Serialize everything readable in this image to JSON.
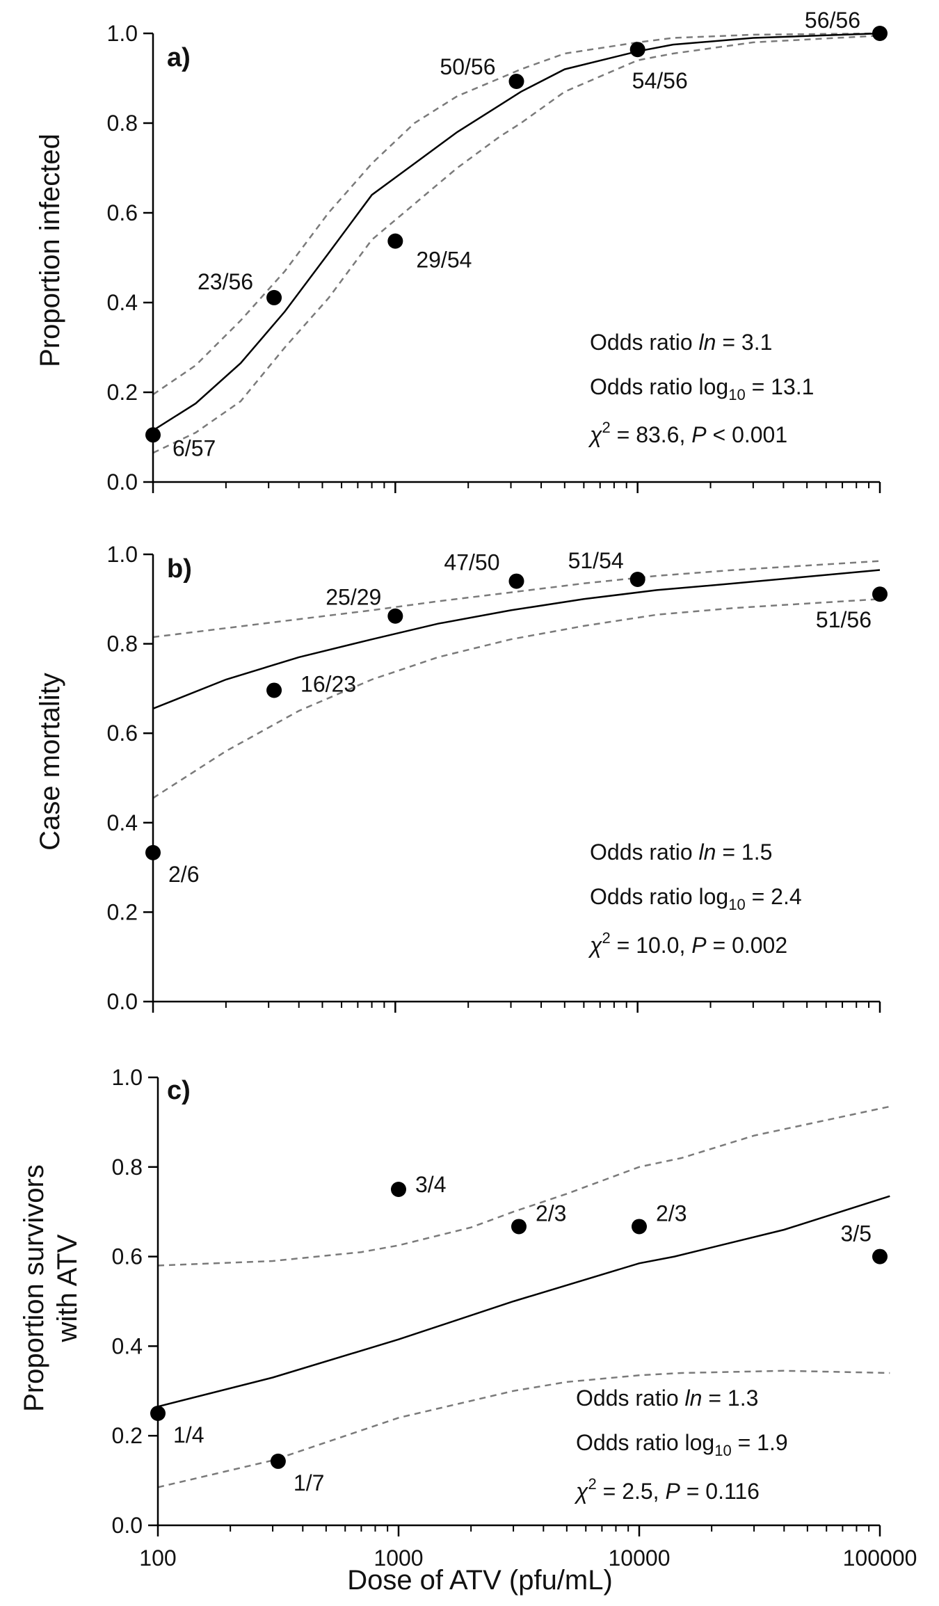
{
  "chart_data": [
    {
      "type": "scatter",
      "panel_label": "a)",
      "ylabel": "Proportion infected",
      "xlabel": "",
      "x_scale": "log",
      "xlim": [
        100,
        100000
      ],
      "ylim": [
        0,
        1
      ],
      "yticks": [
        "0.0",
        "0.2",
        "0.4",
        "0.6",
        "0.8",
        "1.0"
      ],
      "points": [
        {
          "x": 100,
          "y": 0.105,
          "label": "6/57"
        },
        {
          "x": 316,
          "y": 0.411,
          "label": "23/56"
        },
        {
          "x": 1000,
          "y": 0.537,
          "label": "29/54"
        },
        {
          "x": 3162,
          "y": 0.893,
          "label": "50/56"
        },
        {
          "x": 10000,
          "y": 0.964,
          "label": "54/56"
        },
        {
          "x": 100000,
          "y": 1.0,
          "label": "56/56"
        }
      ],
      "fit": {
        "x": [
          100,
          150,
          230,
          350,
          530,
          800,
          1200,
          1800,
          2700,
          3300,
          5000,
          10000,
          14000,
          30000,
          100000
        ],
        "y": [
          0.115,
          0.175,
          0.265,
          0.38,
          0.51,
          0.64,
          0.71,
          0.78,
          0.84,
          0.87,
          0.92,
          0.96,
          0.975,
          0.99,
          1.0
        ]
      },
      "ci_upper": {
        "x": [
          100,
          150,
          230,
          350,
          530,
          800,
          1200,
          1800,
          2700,
          3300,
          5000,
          10000,
          14000,
          30000,
          100000
        ],
        "y": [
          0.195,
          0.26,
          0.36,
          0.47,
          0.6,
          0.71,
          0.8,
          0.86,
          0.9,
          0.92,
          0.955,
          0.98,
          0.99,
          0.997,
          1.0
        ]
      },
      "ci_lower": {
        "x": [
          100,
          150,
          230,
          350,
          530,
          800,
          1200,
          1800,
          2700,
          3300,
          5000,
          10000,
          14000,
          30000,
          100000
        ],
        "y": [
          0.065,
          0.11,
          0.18,
          0.3,
          0.41,
          0.54,
          0.62,
          0.7,
          0.77,
          0.8,
          0.87,
          0.94,
          0.955,
          0.98,
          0.995
        ]
      },
      "stats": {
        "or_ln_prefix": "Odds ratio ",
        "or_ln_symbol": "ln",
        "or_ln_value": " = 3.1",
        "or_log_prefix": "Odds ratio log",
        "or_log_sub": "10",
        "or_log_value": " = 13.1",
        "chi_symbol": "χ",
        "chi_sup": "2",
        "chi_value": " = 83.6, ",
        "p_symbol": "P",
        "p_value": " < 0.001"
      }
    },
    {
      "type": "scatter",
      "panel_label": "b)",
      "ylabel": "Case mortality",
      "xlabel": "",
      "x_scale": "log",
      "xlim": [
        100,
        100000
      ],
      "ylim": [
        0,
        1
      ],
      "yticks": [
        "0.0",
        "0.2",
        "0.4",
        "0.6",
        "0.8",
        "1.0"
      ],
      "points": [
        {
          "x": 100,
          "y": 0.333,
          "label": "2/6"
        },
        {
          "x": 316,
          "y": 0.696,
          "label": "16/23"
        },
        {
          "x": 1000,
          "y": 0.862,
          "label": "25/29"
        },
        {
          "x": 3162,
          "y": 0.94,
          "label": "47/50"
        },
        {
          "x": 10000,
          "y": 0.944,
          "label": "51/54"
        },
        {
          "x": 100000,
          "y": 0.911,
          "label": "51/56"
        }
      ],
      "fit": {
        "x": [
          100,
          200,
          400,
          800,
          1500,
          3000,
          6000,
          12000,
          25000,
          50000,
          100000
        ],
        "y": [
          0.655,
          0.72,
          0.77,
          0.81,
          0.845,
          0.875,
          0.9,
          0.92,
          0.935,
          0.95,
          0.965
        ]
      },
      "ci_upper": {
        "x": [
          100,
          200,
          400,
          800,
          1500,
          3000,
          6000,
          12000,
          25000,
          50000,
          100000
        ],
        "y": [
          0.815,
          0.835,
          0.855,
          0.875,
          0.895,
          0.915,
          0.935,
          0.952,
          0.965,
          0.975,
          0.985
        ]
      },
      "ci_lower": {
        "x": [
          100,
          200,
          400,
          800,
          1500,
          3000,
          6000,
          12000,
          25000,
          50000,
          100000
        ],
        "y": [
          0.455,
          0.56,
          0.65,
          0.72,
          0.77,
          0.81,
          0.84,
          0.865,
          0.88,
          0.89,
          0.9
        ]
      },
      "stats": {
        "or_ln_prefix": "Odds ratio ",
        "or_ln_symbol": "ln",
        "or_ln_value": " = 1.5",
        "or_log_prefix": "Odds ratio log",
        "or_log_sub": "10",
        "or_log_value": " = 2.4",
        "chi_symbol": "χ",
        "chi_sup": "2",
        "chi_value": " = 10.0, ",
        "p_symbol": "P",
        "p_value": " = 0.002"
      }
    },
    {
      "type": "scatter",
      "panel_label": "c)",
      "ylabel": "Proportion survivors with ATV",
      "ylabel_lines": [
        "Proportion survivors",
        "with ATV"
      ],
      "xlabel": "Dose of ATV (pfu/mL)",
      "x_scale": "log",
      "xlim": [
        100,
        100000
      ],
      "ylim": [
        0,
        1
      ],
      "yticks": [
        "0.0",
        "0.2",
        "0.4",
        "0.6",
        "0.8",
        "1.0"
      ],
      "xticks": [
        "100",
        "1000",
        "10000",
        "100000"
      ],
      "points": [
        {
          "x": 100,
          "y": 0.25,
          "label": "1/4"
        },
        {
          "x": 316,
          "y": 0.143,
          "label": "1/7"
        },
        {
          "x": 1000,
          "y": 0.75,
          "label": "3/4"
        },
        {
          "x": 3162,
          "y": 0.667,
          "label": "2/3"
        },
        {
          "x": 10000,
          "y": 0.667,
          "label": "2/3"
        },
        {
          "x": 100000,
          "y": 0.6,
          "label": "3/5"
        }
      ],
      "fit": {
        "x": [
          100,
          300,
          1000,
          3000,
          10000,
          14000,
          40000,
          110000
        ],
        "y": [
          0.265,
          0.33,
          0.415,
          0.5,
          0.585,
          0.6,
          0.66,
          0.735
        ]
      },
      "ci_upper": {
        "x": [
          100,
          300,
          700,
          1000,
          2000,
          3000,
          5000,
          10000,
          15000,
          30000,
          110000
        ],
        "y": [
          0.58,
          0.59,
          0.61,
          0.625,
          0.665,
          0.7,
          0.74,
          0.8,
          0.82,
          0.87,
          0.935
        ]
      },
      "ci_lower": {
        "x": [
          100,
          300,
          1000,
          3000,
          5000,
          10000,
          15000,
          40000,
          110000
        ],
        "y": [
          0.085,
          0.145,
          0.24,
          0.3,
          0.32,
          0.335,
          0.34,
          0.345,
          0.34
        ]
      },
      "stats": {
        "or_ln_prefix": "Odds ratio ",
        "or_ln_symbol": "ln",
        "or_ln_value": " = 1.3",
        "or_log_prefix": "Odds ratio log",
        "or_log_sub": "10",
        "or_log_value": " = 1.9",
        "chi_symbol": "χ",
        "chi_sup": "2",
        "chi_value": " = 2.5, ",
        "p_symbol": "P",
        "p_value": " = 0.116"
      }
    }
  ]
}
